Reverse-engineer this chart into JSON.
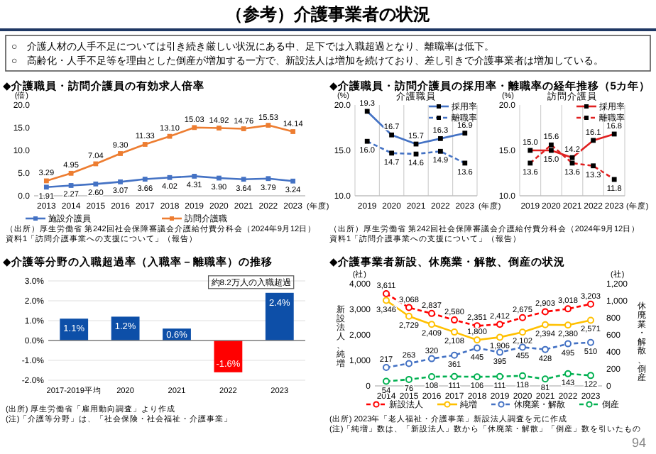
{
  "chart_data": [
    {
      "type": "other",
      "title": "（参考）介護事業者の状況",
      "annotations": [
        "○　介護人材の人手不足については引き続き厳しい状況にある中、足下では入職超過となり、離職率は低下。",
        "○　高齢化・人手不足等を理由とした倒産が増加する一方で、新設法人は増加を続けており、差し引きで介護事業者は増加している。",
        "94"
      ]
    },
    {
      "type": "line",
      "title": "◆介護職員・訪問介護員の有効求人倍率",
      "ylabel": "(倍)",
      "xlabel": "(年度)",
      "categories": [
        "2013",
        "2014",
        "2015",
        "2016",
        "2017",
        "2018",
        "2019",
        "2020",
        "2021",
        "2022",
        "2023"
      ],
      "ylim": [
        0,
        20
      ],
      "yticks": [
        {
          "value": 0,
          "label": "0.0"
        },
        {
          "value": 5,
          "label": "5.0"
        },
        {
          "value": 10,
          "label": "10.0"
        },
        {
          "value": 15,
          "label": "15.0"
        },
        {
          "value": 20,
          "label": "20.0"
        }
      ],
      "marker": "square",
      "legend": "bottom",
      "series": [
        {
          "name": "施設介護員",
          "color": "#4472c4",
          "values": [
            1.91,
            2.27,
            2.6,
            3.07,
            3.66,
            4.02,
            4.31,
            3.9,
            3.64,
            3.79,
            3.24
          ],
          "value_labels": [
            "1.91",
            "2.27",
            "2.60",
            "3.07",
            "3.66",
            "4.02",
            "4.31",
            "3.90",
            "3.64",
            "3.79",
            "3.24"
          ]
        },
        {
          "name": "訪問介護職",
          "color": "#ed7d31",
          "values": [
            3.29,
            4.95,
            7.04,
            9.3,
            11.33,
            13.1,
            15.03,
            14.92,
            14.76,
            15.53,
            14.14
          ],
          "value_labels": [
            "3.29",
            "4.95",
            "7.04",
            "9.30",
            "11.33",
            "13.10",
            "15.03",
            "14.92",
            "14.76",
            "15.53",
            "14.14"
          ]
        }
      ],
      "annotations": [
        "（出所）厚生労働省 第242回社会保障審議会介護給付費分科会（2024年9月12日）",
        "資料1「訪問介護事業への支援について」（報告）"
      ]
    },
    {
      "type": "line",
      "title": "◆介護職員・訪問介護員の採用率・離職率の経年推移（5カ年）",
      "subtitle": "介護職員",
      "ylabel": "(%)",
      "xlabel": "(年度)",
      "categories": [
        "2019",
        "2020",
        "2021",
        "2022",
        "2023"
      ],
      "ylim": [
        10,
        20
      ],
      "yticks": [
        {
          "value": 10,
          "label": "10.0"
        },
        {
          "value": 15,
          "label": "15.0"
        },
        {
          "value": 20,
          "label": "20.0"
        }
      ],
      "marker": "square",
      "legend": "top right",
      "grid": "x",
      "series": [
        {
          "name": "採用率",
          "color": "#4472c4",
          "line_style": "solid",
          "values": [
            19.3,
            16.7,
            15.7,
            16.3,
            16.9
          ],
          "value_labels": [
            "19.3",
            "16.7",
            "15.7",
            "16.3",
            "16.9"
          ]
        },
        {
          "name": "離職率",
          "color": "#4472c4",
          "line_style": "dashed",
          "values": [
            16.0,
            14.7,
            14.6,
            14.9,
            13.6
          ],
          "value_labels": [
            "16.0",
            "14.7",
            "14.6",
            "14.9",
            "13.6"
          ]
        }
      ],
      "annotations": [
        "（出所）厚生労働省 第242回社会保障審議会介護給付費分科会（2024年9月12日）",
        "資料1「訪問介護事業への支援について」（報告）"
      ]
    },
    {
      "type": "line",
      "subtitle": "訪問介護員",
      "ylabel": "(%)",
      "xlabel": "(年度)",
      "categories": [
        "2019",
        "2020",
        "2021",
        "2022",
        "2023"
      ],
      "ylim": [
        10,
        20
      ],
      "yticks": [
        {
          "value": 10,
          "label": "10.0"
        },
        {
          "value": 15,
          "label": "15.0"
        },
        {
          "value": 20,
          "label": "20.0"
        }
      ],
      "marker": "square",
      "legend": "top right",
      "grid": "x",
      "series": [
        {
          "name": "採用率",
          "color": "#e02020",
          "line_style": "solid",
          "values": [
            15.0,
            15.0,
            14.2,
            16.1,
            16.8
          ],
          "value_labels": [
            "15.0",
            "15.0",
            "14.2",
            "16.1",
            "16.8"
          ]
        },
        {
          "name": "離職率",
          "color": "#e02020",
          "line_style": "dashed",
          "values": [
            13.6,
            15.6,
            13.6,
            13.3,
            11.8
          ],
          "value_labels": [
            "13.6",
            "15.6",
            "13.6",
            "13.3",
            "11.8"
          ]
        }
      ]
    },
    {
      "type": "bar",
      "title": "◆介護等分野の入職超過率（入職率－離職率）の推移",
      "categories": [
        "2017-2019平均",
        "2020",
        "2021",
        "2022",
        "2023"
      ],
      "values": [
        1.1,
        1.2,
        0.6,
        -1.6,
        2.4
      ],
      "colors": [
        "#0d4fa8",
        "#0d4fa8",
        "#0d4fa8",
        "#ff0000",
        "#0d4fa8"
      ],
      "value_labels": [
        "1.1%",
        "1.2%",
        "0.6%",
        "-1.6%",
        "2.4%"
      ],
      "ylim": [
        -2,
        3
      ],
      "yticks": [
        {
          "value": -2,
          "label": "-2.0%"
        },
        {
          "value": -1,
          "label": "-1.0%"
        },
        {
          "value": 0,
          "label": "0.0%"
        },
        {
          "value": 1,
          "label": "1.0%"
        },
        {
          "value": 2,
          "label": "2.0%"
        },
        {
          "value": 3,
          "label": "3.0%"
        }
      ],
      "grid": "y",
      "annotations": [
        {
          "text": "約8.2万人の入職超過",
          "x": "2023",
          "y": 2.4
        },
        "(出所) 厚生労働省「雇用動向調査」より作成",
        "(注)「介護等分野」は、「社会保険・社会福祉・介護事業」"
      ]
    },
    {
      "type": "line",
      "title": "◆介護事業者新設、休廃業・解散、倒産の状況",
      "ylabel": "新設法人、純増",
      "y2label": "休廃業・解散、倒産",
      "categories": [
        "2014",
        "2015",
        "2016",
        "2017",
        "2018",
        "2019",
        "2020",
        "2021",
        "2022",
        "2023"
      ],
      "ylim": [
        0,
        4000
      ],
      "yticks": [
        0,
        {
          "value": 1000,
          "label": "1,000"
        },
        {
          "value": 2000,
          "label": "2,000"
        },
        {
          "value": 3000,
          "label": "3,000"
        },
        {
          "value": 4000,
          "label": "4,000"
        }
      ],
      "y2lim": [
        0,
        1200
      ],
      "y2ticks": [
        0,
        200,
        400,
        600,
        800,
        {
          "value": 1000,
          "label": "1,000"
        },
        {
          "value": 1200,
          "label": "1,200"
        }
      ],
      "marker": "circle",
      "legend": "bottom",
      "series": [
        {
          "name": "新設法人",
          "color": "#ff0000",
          "line_style": "dashed",
          "values": [
            3611,
            3068,
            2837,
            2580,
            2351,
            2412,
            2675,
            2903,
            3018,
            3203
          ],
          "value_labels": [
            "3,611",
            "3,068",
            "2,837",
            "2,580",
            "2,351",
            "2,412",
            "2,675",
            "2,903",
            "3,018",
            "3,203"
          ]
        },
        {
          "name": "純増",
          "color": "#ffc000",
          "line_style": "solid",
          "values": [
            3346,
            2729,
            2409,
            2108,
            1800,
            1906,
            2102,
            2394,
            2380,
            2571
          ],
          "value_labels": [
            "3,346",
            "2,729",
            "2,409",
            "2,108",
            "1,800",
            "1,906",
            "2,102",
            "2,394",
            "2,380",
            "2,571"
          ]
        },
        {
          "name": "休廃業・解散",
          "color": "#4472c4",
          "line_style": "dashed",
          "axis": "y2",
          "values": [
            217,
            263,
            320,
            361,
            445,
            395,
            455,
            428,
            495,
            510
          ],
          "value_labels": [
            "217",
            "263",
            "320",
            "361",
            "445",
            "395",
            "455",
            "428",
            "495",
            "510"
          ]
        },
        {
          "name": "倒産",
          "color": "#00b050",
          "line_style": "dashed",
          "axis": "y2",
          "values": [
            54,
            76,
            108,
            111,
            106,
            111,
            118,
            81,
            143,
            122
          ],
          "value_labels": [
            "54",
            "76",
            "108",
            "111",
            "106",
            "111",
            "118",
            "81",
            "143",
            "122"
          ]
        }
      ],
      "annotations": [
        "(社)",
        "(社)",
        "(出所) 2023年「老人福祉・介護事業」新設法人調査を元に作成",
        "(注)「純増」数は、「新設法人」数から「休廃業・解散」「倒産」数を引いたもの"
      ]
    }
  ]
}
